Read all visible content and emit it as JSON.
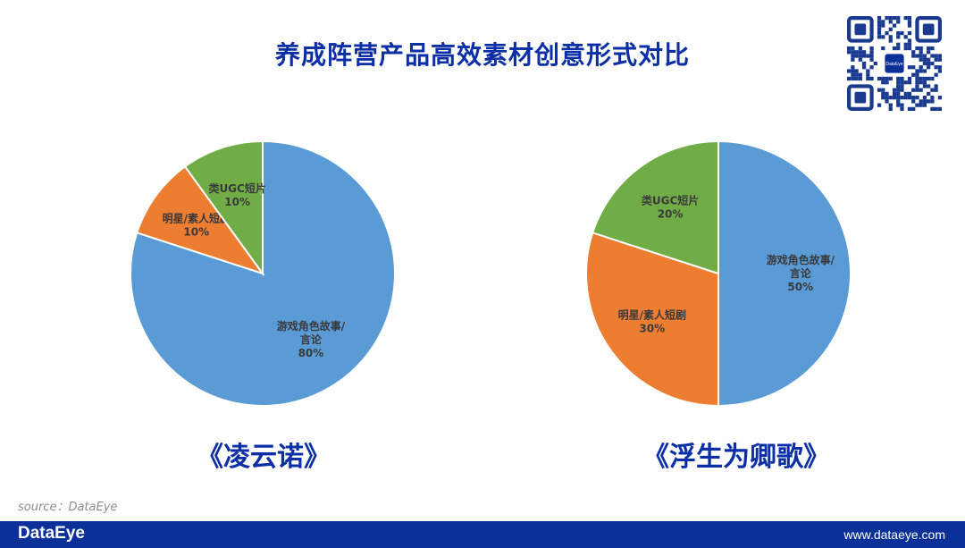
{
  "page": {
    "title": "养成阵营产品高效素材创意形式对比",
    "source": "source：DataEye",
    "footer_brand": "DataEye",
    "footer_url": "www.dataeye.com",
    "qr_center_text": "DataEye"
  },
  "colors": {
    "blue": "#5b9bd5",
    "orange": "#ed7d31",
    "green": "#70ad47",
    "title": "#0d2fa6",
    "footer": "#0b3199"
  },
  "chart_data": [
    {
      "type": "pie",
      "title": "《凌云诺》",
      "slices": [
        {
          "label": [
            "游戏角色故事/",
            "言论"
          ],
          "pct": "80%",
          "value": 80,
          "color": "#5b9bd5"
        },
        {
          "label": [
            "明星/素人短剧"
          ],
          "pct": "10%",
          "value": 10,
          "color": "#ed7d31"
        },
        {
          "label": [
            "类UGC短片"
          ],
          "pct": "10%",
          "value": 10,
          "color": "#70ad47"
        }
      ]
    },
    {
      "type": "pie",
      "title": "《浮生为卿歌》",
      "slices": [
        {
          "label": [
            "游戏角色故事/",
            "言论"
          ],
          "pct": "50%",
          "value": 50,
          "color": "#5b9bd5"
        },
        {
          "label": [
            "明星/素人短剧"
          ],
          "pct": "30%",
          "value": 30,
          "color": "#ed7d31"
        },
        {
          "label": [
            "类UGC短片"
          ],
          "pct": "20%",
          "value": 20,
          "color": "#70ad47"
        }
      ]
    }
  ]
}
